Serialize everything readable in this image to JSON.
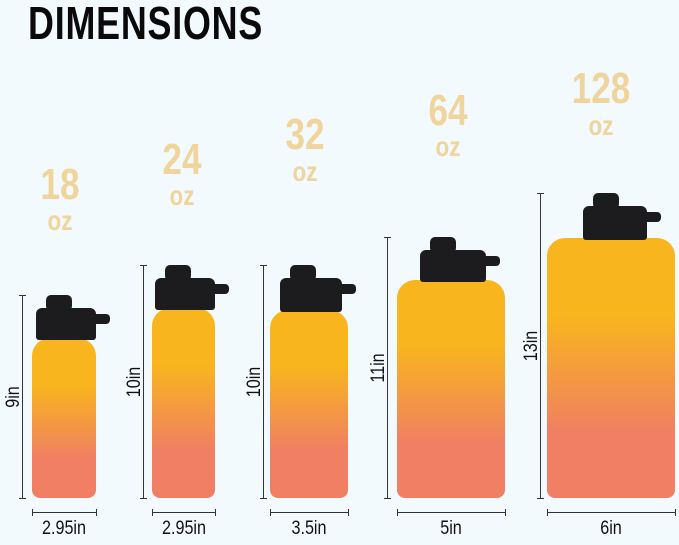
{
  "title": "DIMENSIONS",
  "colors": {
    "background": "#f3fafd",
    "capacity_text": "#efd49c",
    "gradient_top": "#f8b51e",
    "gradient_bottom": "#f07f63",
    "cap": "#1c1c1e"
  },
  "bottles": [
    {
      "capacity": "18",
      "unit": "oz",
      "height": "9in",
      "width": "2.95in"
    },
    {
      "capacity": "24",
      "unit": "oz",
      "height": "10in",
      "width": "2.95in"
    },
    {
      "capacity": "32",
      "unit": "oz",
      "height": "10in",
      "width": "3.5in"
    },
    {
      "capacity": "64",
      "unit": "oz",
      "height": "11in",
      "width": "5in"
    },
    {
      "capacity": "128",
      "unit": "oz",
      "height": "13in",
      "width": "6in"
    }
  ]
}
